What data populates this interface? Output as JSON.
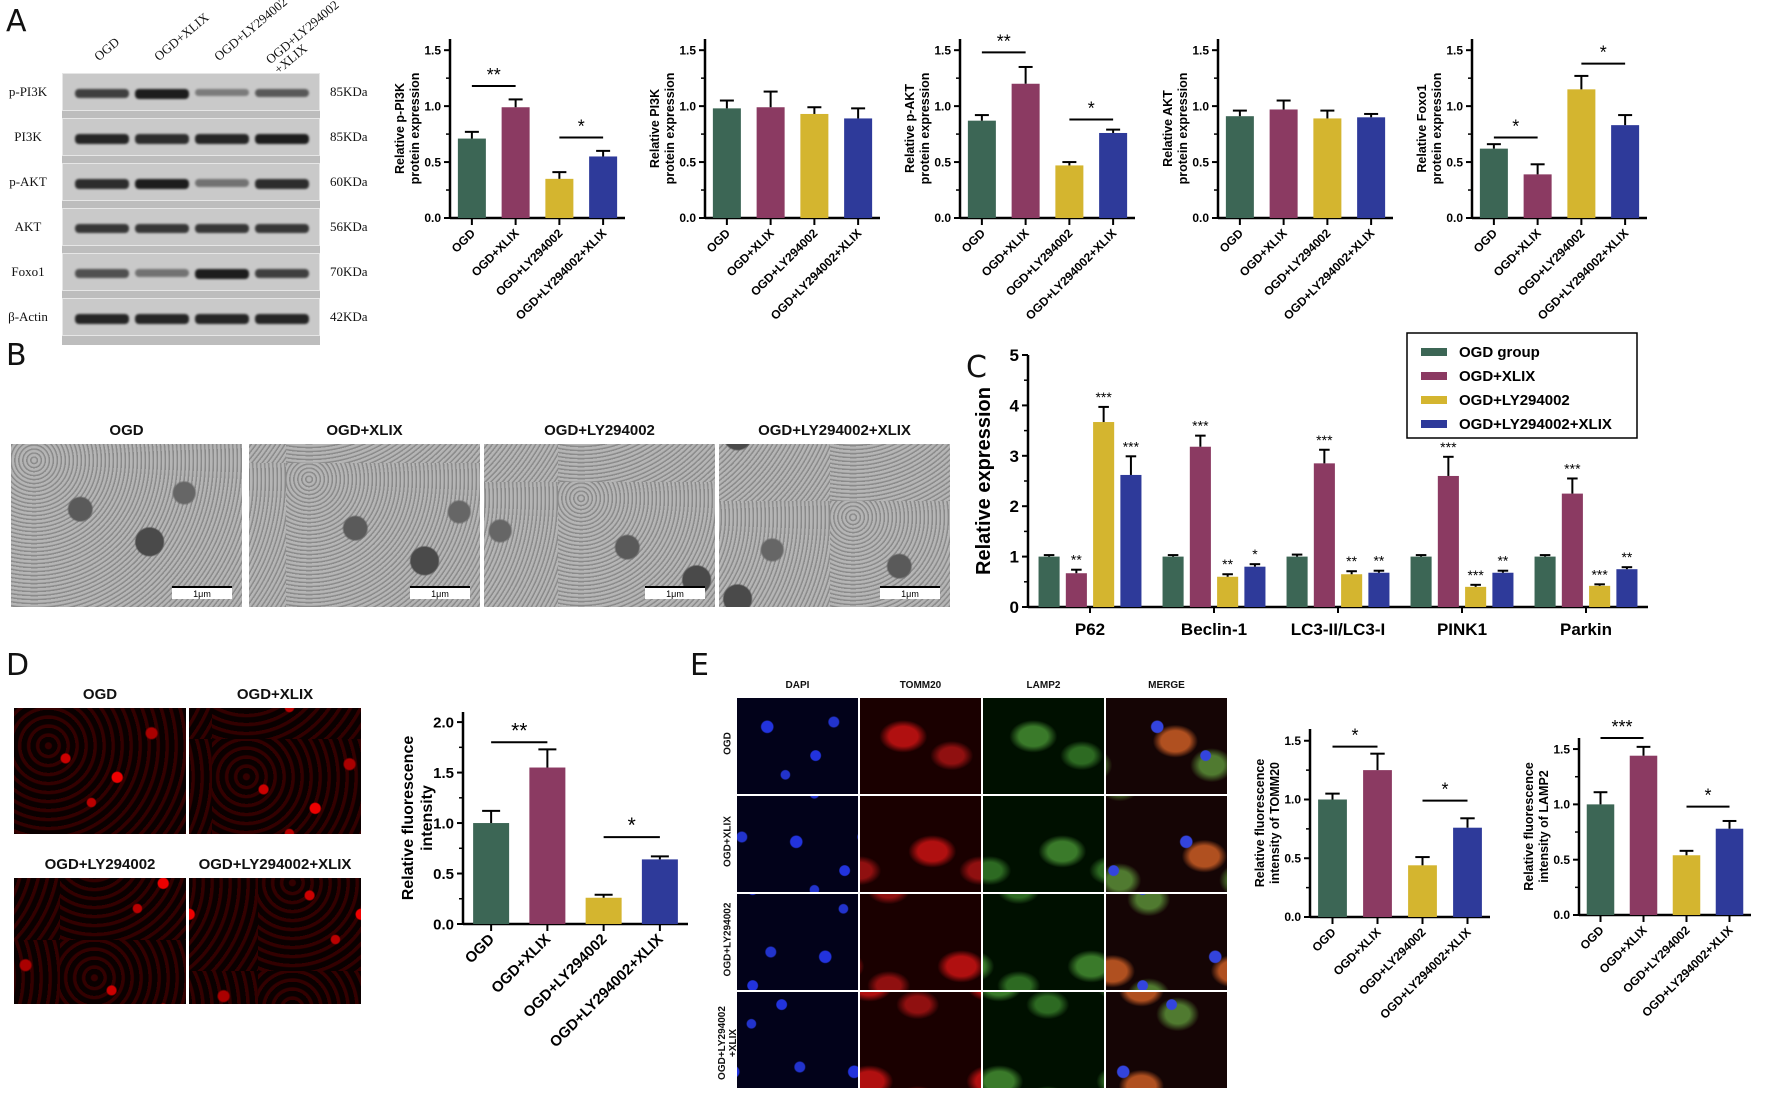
{
  "colors": {
    "OGD": "#3c6655",
    "OGD+XLIX": "#8b3a62",
    "OGD+LY294002": "#d4b52f",
    "OGD+LY294002+XLIX": "#2e3a9a"
  },
  "panels": {
    "A": "A",
    "B": "B",
    "C": "C",
    "D": "D",
    "E": "E"
  },
  "blot": {
    "lanes": [
      "OGD",
      "OGD+XLIX",
      "OGD+LY294002",
      "OGD+LY294002\n+XLIX"
    ],
    "rows": [
      {
        "label": "p-PI3K",
        "kda": "85KDa",
        "intensity": [
          0.8,
          1.0,
          0.45,
          0.65
        ]
      },
      {
        "label": "PI3K",
        "kda": "85KDa",
        "intensity": [
          0.95,
          0.9,
          0.95,
          1.0
        ]
      },
      {
        "label": "p-AKT",
        "kda": "60KDa",
        "intensity": [
          0.9,
          1.0,
          0.5,
          0.9
        ]
      },
      {
        "label": "AKT",
        "kda": "56KDa",
        "intensity": [
          0.85,
          0.85,
          0.85,
          0.85
        ]
      },
      {
        "label": "Foxo1",
        "kda": "70KDa",
        "intensity": [
          0.7,
          0.5,
          1.0,
          0.8
        ]
      },
      {
        "label": "β-Actin",
        "kda": "42KDa",
        "intensity": [
          0.95,
          0.95,
          0.95,
          0.95
        ]
      }
    ]
  },
  "em_images": {
    "titles": [
      "OGD",
      "OGD+XLIX",
      "OGD+LY294002",
      "OGD+LY294002+XLIX"
    ],
    "scale": "1μm"
  },
  "fluor_D": {
    "titles": [
      "OGD",
      "OGD+XLIX",
      "OGD+LY294002",
      "OGD+LY294002+XLIX"
    ]
  },
  "fluor_E": {
    "columns": [
      "DAPI",
      "TOMM20",
      "LAMP2",
      "MERGE"
    ],
    "rows": [
      "OGD",
      "OGD+XLIX",
      "OGD+LY294002",
      "OGD+LY294002\n+XLIX"
    ]
  },
  "chart_data": [
    {
      "type": "bar",
      "panel": "A",
      "ylabel": [
        "Relative p-PI3K",
        "protein expression"
      ],
      "categories": [
        "OGD",
        "OGD+XLIX",
        "OGD+LY294002",
        "OGD+LY294002+XLIX"
      ],
      "values": [
        0.71,
        0.99,
        0.35,
        0.55
      ],
      "errors": [
        0.06,
        0.07,
        0.06,
        0.05
      ],
      "ylim": [
        0,
        1.6
      ],
      "yticks": [
        "0.0",
        "0.5",
        "1.0",
        "1.5"
      ],
      "comparisons": [
        {
          "pair": [
            0,
            1
          ],
          "y": 1.18,
          "label": "**"
        },
        {
          "pair": [
            2,
            3
          ],
          "y": 0.72,
          "label": "*"
        }
      ]
    },
    {
      "type": "bar",
      "panel": "A",
      "ylabel": [
        "Relative PI3K",
        "protein expression"
      ],
      "categories": [
        "OGD",
        "OGD+XLIX",
        "OGD+LY294002",
        "OGD+LY294002+XLIX"
      ],
      "values": [
        0.98,
        0.99,
        0.93,
        0.89
      ],
      "errors": [
        0.07,
        0.14,
        0.06,
        0.09
      ],
      "ylim": [
        0,
        1.6
      ],
      "yticks": [
        "0.0",
        "0.5",
        "1.0",
        "1.5"
      ],
      "comparisons": []
    },
    {
      "type": "bar",
      "panel": "A",
      "ylabel": [
        "Relative p-AKT",
        "protein expression"
      ],
      "categories": [
        "OGD",
        "OGD+XLIX",
        "OGD+LY294002",
        "OGD+LY294002+XLIX"
      ],
      "values": [
        0.87,
        1.2,
        0.47,
        0.76
      ],
      "errors": [
        0.05,
        0.15,
        0.03,
        0.03
      ],
      "ylim": [
        0,
        1.6
      ],
      "yticks": [
        "0.0",
        "0.5",
        "1.0",
        "1.5"
      ],
      "comparisons": [
        {
          "pair": [
            0,
            1
          ],
          "y": 1.48,
          "label": "**"
        },
        {
          "pair": [
            2,
            3
          ],
          "y": 0.88,
          "label": "*"
        }
      ]
    },
    {
      "type": "bar",
      "panel": "A",
      "ylabel": [
        "Relative AKT",
        "protein expression"
      ],
      "categories": [
        "OGD",
        "OGD+XLIX",
        "OGD+LY294002",
        "OGD+LY294002+XLIX"
      ],
      "values": [
        0.91,
        0.97,
        0.89,
        0.9
      ],
      "errors": [
        0.05,
        0.08,
        0.07,
        0.03
      ],
      "ylim": [
        0,
        1.6
      ],
      "yticks": [
        "0.0",
        "0.5",
        "1.0",
        "1.5"
      ],
      "comparisons": []
    },
    {
      "type": "bar",
      "panel": "A",
      "ylabel": [
        "Relative Foxo1",
        "protein expression"
      ],
      "categories": [
        "OGD",
        "OGD+XLIX",
        "OGD+LY294002",
        "OGD+LY294002+XLIX"
      ],
      "values": [
        0.62,
        0.39,
        1.15,
        0.83
      ],
      "errors": [
        0.04,
        0.09,
        0.12,
        0.09
      ],
      "ylim": [
        0,
        1.6
      ],
      "yticks": [
        "0.0",
        "0.5",
        "1.0",
        "1.5"
      ],
      "comparisons": [
        {
          "pair": [
            0,
            1
          ],
          "y": 0.72,
          "label": "*"
        },
        {
          "pair": [
            2,
            3
          ],
          "y": 1.38,
          "label": "*"
        }
      ]
    },
    {
      "type": "bar",
      "panel": "C",
      "ylabel": [
        "Relative expression"
      ],
      "categories": [
        "P62",
        "Beclin-1",
        "LC3-II/LC3-I",
        "PINK1",
        "Parkin"
      ],
      "legend_position": "top-right",
      "ylim": [
        0,
        5
      ],
      "yticks": [
        "0",
        "1",
        "2",
        "3",
        "4",
        "5"
      ],
      "series": [
        {
          "name": "OGD group",
          "values": [
            1.0,
            1.0,
            1.0,
            1.0,
            1.0
          ],
          "errors": [
            0.03,
            0.03,
            0.04,
            0.03,
            0.03
          ],
          "sig": [
            "",
            "",
            "",
            "",
            ""
          ]
        },
        {
          "name": "OGD+XLIX",
          "values": [
            0.67,
            3.18,
            2.85,
            2.6,
            2.25
          ],
          "errors": [
            0.07,
            0.22,
            0.27,
            0.38,
            0.3
          ],
          "sig": [
            "**",
            "***",
            "***",
            "***",
            "***"
          ]
        },
        {
          "name": "OGD+LY294002",
          "values": [
            3.67,
            0.6,
            0.65,
            0.4,
            0.42
          ],
          "errors": [
            0.3,
            0.05,
            0.06,
            0.04,
            0.03
          ],
          "sig": [
            "***",
            "**",
            "**",
            "***",
            "***"
          ]
        },
        {
          "name": "OGD+LY294002+XLIX",
          "values": [
            2.62,
            0.8,
            0.68,
            0.68,
            0.75
          ],
          "errors": [
            0.37,
            0.05,
            0.04,
            0.04,
            0.04
          ],
          "sig": [
            "***",
            "*",
            "**",
            "**",
            "**"
          ]
        }
      ]
    },
    {
      "type": "bar",
      "panel": "D",
      "ylabel": [
        "Relative fluorescence",
        "intensity"
      ],
      "categories": [
        "OGD",
        "OGD+XLIX",
        "OGD+LY294002",
        "OGD+LY294002+XLIX"
      ],
      "values": [
        1.0,
        1.55,
        0.26,
        0.64
      ],
      "errors": [
        0.12,
        0.18,
        0.03,
        0.03
      ],
      "ylim": [
        0,
        2.1
      ],
      "yticks": [
        "0.0",
        "0.5",
        "1.0",
        "1.5",
        "2.0"
      ],
      "comparisons": [
        {
          "pair": [
            0,
            1
          ],
          "y": 1.8,
          "label": "**"
        },
        {
          "pair": [
            2,
            3
          ],
          "y": 0.86,
          "label": "*"
        }
      ]
    },
    {
      "type": "bar",
      "panel": "E",
      "ylabel": [
        "Relative fluorescence",
        "intensity of TOMM20"
      ],
      "categories": [
        "OGD",
        "OGD+XLIX",
        "OGD+LY294002",
        "OGD+LY294002+XLIX"
      ],
      "values": [
        1.0,
        1.25,
        0.44,
        0.76
      ],
      "errors": [
        0.05,
        0.14,
        0.07,
        0.08
      ],
      "ylim": [
        0,
        1.6
      ],
      "yticks": [
        "0.0",
        "0.5",
        "1.0",
        "1.5"
      ],
      "comparisons": [
        {
          "pair": [
            0,
            1
          ],
          "y": 1.45,
          "label": "*"
        },
        {
          "pair": [
            2,
            3
          ],
          "y": 0.99,
          "label": "*"
        }
      ]
    },
    {
      "type": "bar",
      "panel": "E",
      "ylabel": [
        "Relative fluorescence",
        "intensity of LAMP2"
      ],
      "categories": [
        "OGD",
        "OGD+XLIX",
        "OGD+LY294002",
        "OGD+LY294002+XLIX"
      ],
      "values": [
        1.0,
        1.44,
        0.54,
        0.78
      ],
      "errors": [
        0.11,
        0.08,
        0.04,
        0.07
      ],
      "ylim": [
        0,
        1.6
      ],
      "yticks": [
        "0.0",
        "0.5",
        "1.0",
        "1.5"
      ],
      "comparisons": [
        {
          "pair": [
            0,
            1
          ],
          "y": 1.6,
          "label": "***"
        },
        {
          "pair": [
            2,
            3
          ],
          "y": 0.98,
          "label": "*"
        }
      ]
    }
  ]
}
